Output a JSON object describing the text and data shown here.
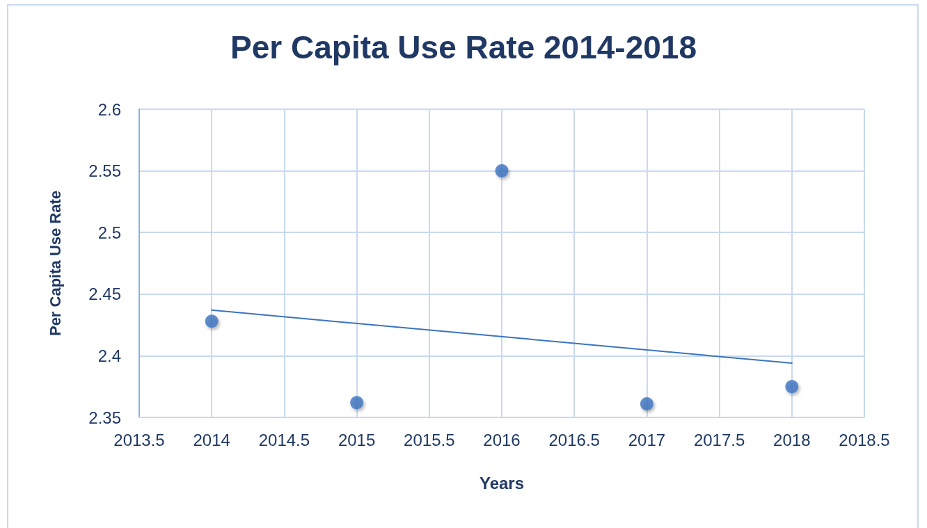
{
  "chart_data": {
    "type": "scatter",
    "title": "Per Capita Use Rate 2014-2018",
    "xlabel": "Years",
    "ylabel": "Per Capita Use Rate",
    "series": [
      {
        "color": "#3b73c0",
        "x": [
          2014,
          2015,
          2016,
          2017,
          2018
        ],
        "values": [
          2.428,
          2.362,
          2.55,
          2.361,
          2.375
        ]
      },
      {
        "type": "line",
        "marker": "none",
        "color": "#3b73c0",
        "x": [
          2014,
          2018
        ],
        "values": [
          2.437,
          2.394
        ]
      }
    ],
    "xlim": [
      2013.5,
      2018.5
    ],
    "xticks": [
      2013.5,
      2014,
      2014.5,
      2015,
      2015.5,
      2016,
      2016.5,
      2017,
      2017.5,
      2018,
      2018.5
    ],
    "ylim": [
      2.35,
      2.6
    ],
    "yticks": [
      2.35,
      2.4,
      2.45,
      2.5,
      2.55,
      2.6
    ],
    "grid": true,
    "marker": "circle",
    "line_style": "solid"
  }
}
